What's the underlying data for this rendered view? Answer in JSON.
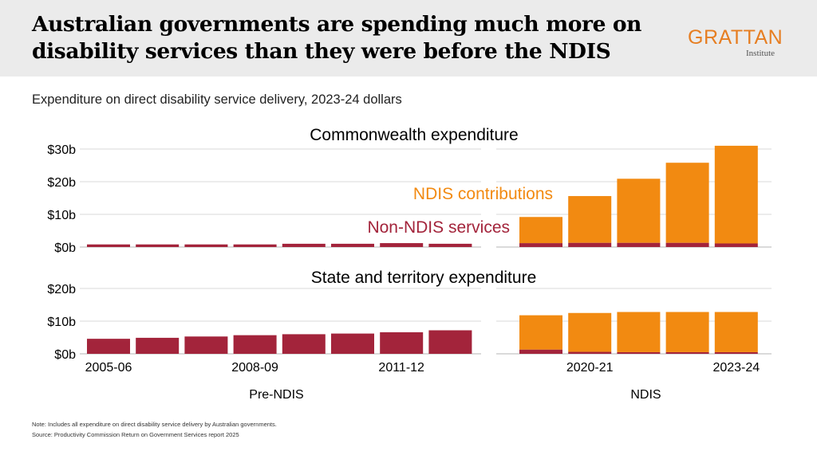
{
  "header": {
    "title": "Australian governments are spending much more on disability services than they were before the NDIS",
    "logo_main": "GRATTAN",
    "logo_sub": "Institute"
  },
  "subtitle": "Expenditure on direct disability service delivery, 2023-24 dollars",
  "chart_data": [
    {
      "type": "bar",
      "stacked": true,
      "title": "Commonwealth expenditure",
      "ylim": [
        0,
        30
      ],
      "yticks": [
        0,
        10,
        20,
        30
      ],
      "ytick_labels": [
        "$0b",
        "$10b",
        "$20b",
        "$30b"
      ],
      "grid": true,
      "annotations": [
        "NDIS contributions",
        "Non-NDIS services"
      ],
      "panels": [
        {
          "label": "Pre-NDIS",
          "bars": 8,
          "series": [
            {
              "name": "Non-NDIS services",
              "color": "#a3243b",
              "values": [
                0.8,
                0.8,
                0.8,
                0.8,
                1.0,
                1.0,
                1.2,
                1.0
              ]
            },
            {
              "name": "NDIS contributions",
              "color": "#f28a11",
              "values": [
                0,
                0,
                0,
                0,
                0,
                0,
                0,
                0
              ]
            }
          ]
        },
        {
          "label": "NDIS",
          "bars": 5,
          "series": [
            {
              "name": "Non-NDIS services",
              "color": "#a3243b",
              "values": [
                1.2,
                1.3,
                1.3,
                1.3,
                1.1
              ]
            },
            {
              "name": "NDIS contributions",
              "color": "#f28a11",
              "values": [
                8.0,
                14.3,
                19.6,
                24.5,
                29.9
              ]
            }
          ]
        }
      ]
    },
    {
      "type": "bar",
      "stacked": true,
      "title": "State and territory expenditure",
      "ylim": [
        0,
        20
      ],
      "yticks": [
        0,
        10,
        20
      ],
      "ytick_labels": [
        "$0b",
        "$10b",
        "$20b"
      ],
      "grid": true,
      "panels": [
        {
          "label": "Pre-NDIS",
          "bars": 8,
          "tick_labels": [
            {
              "bar": 0,
              "text": "2005-06"
            },
            {
              "bar": 3,
              "text": "2008-09"
            },
            {
              "bar": 6,
              "text": "2011-12"
            }
          ],
          "series": [
            {
              "name": "Non-NDIS services",
              "color": "#a3243b",
              "values": [
                4.6,
                4.9,
                5.3,
                5.7,
                6.0,
                6.2,
                6.6,
                7.2
              ]
            },
            {
              "name": "NDIS contributions",
              "color": "#f28a11",
              "values": [
                0,
                0,
                0,
                0,
                0,
                0,
                0,
                0
              ]
            }
          ]
        },
        {
          "label": "NDIS",
          "bars": 5,
          "tick_labels": [
            {
              "bar": 1,
              "text": "2020-21"
            },
            {
              "bar": 4,
              "text": "2023-24"
            }
          ],
          "series": [
            {
              "name": "Non-NDIS services",
              "color": "#a3243b",
              "values": [
                1.3,
                0.6,
                0.5,
                0.5,
                0.5
              ]
            },
            {
              "name": "NDIS contributions",
              "color": "#f28a11",
              "values": [
                10.5,
                11.9,
                12.3,
                12.3,
                12.3
              ]
            }
          ]
        }
      ]
    }
  ],
  "notes": {
    "note": "Note: Includes all expenditure on direct disability service delivery by Australian governments.",
    "source": "Source: Productivity Commission Return on Government Services report 2025"
  }
}
